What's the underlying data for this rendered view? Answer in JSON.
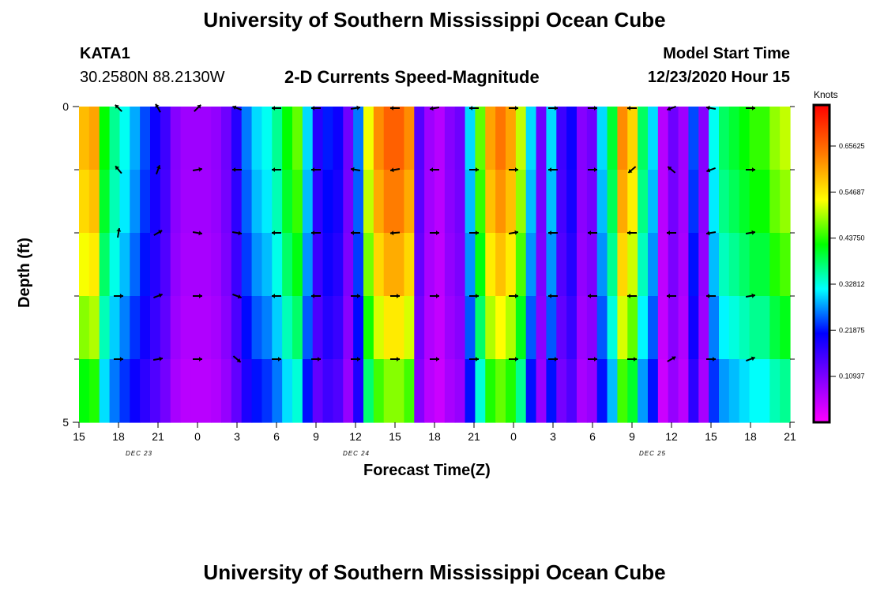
{
  "header": {
    "title": "University of Southern Mississippi Ocean Cube",
    "station": "KATA1",
    "coords": "30.2580N 88.2130W",
    "plot_title": "2-D Currents Speed-Magnitude",
    "model_start_label": "Model Start Time",
    "model_start_value": "12/23/2020 Hour 15"
  },
  "footer": {
    "title": "University of Southern Mississippi Ocean Cube"
  },
  "chart_data": {
    "type": "heatmap",
    "title": "2-D Currents Speed-Magnitude",
    "xlabel": "Forecast Time(Z)",
    "ylabel": "Depth (ft)",
    "yticks": [
      "0",
      "5"
    ],
    "xtick_labels": [
      "15",
      "18",
      "21",
      "0",
      "3",
      "6",
      "9",
      "12",
      "15",
      "18",
      "21",
      "0",
      "3",
      "6",
      "9",
      "12",
      "15",
      "18",
      "21"
    ],
    "day_labels": [
      "DEC 23",
      "DEC 24",
      "DEC 25"
    ],
    "colorbar": {
      "label": "Knots",
      "min": 0.0,
      "max": 0.75,
      "ticks": [
        "0.10937",
        "0.21875",
        "0.32812",
        "0.43750",
        "0.54687",
        "0.65625"
      ]
    },
    "hours": 54,
    "speed_profile": [
      0.58,
      0.6,
      0.42,
      0.36,
      0.32,
      0.28,
      0.24,
      0.2,
      0.16,
      0.1,
      0.08,
      0.08,
      0.08,
      0.09,
      0.12,
      0.18,
      0.26,
      0.3,
      0.32,
      0.36,
      0.42,
      0.46,
      0.3,
      0.18,
      0.22,
      0.2,
      0.12,
      0.26,
      0.52,
      0.62,
      0.66,
      0.66,
      0.62,
      0.14,
      0.08,
      0.06,
      0.1,
      0.12,
      0.3,
      0.46,
      0.6,
      0.64,
      0.6,
      0.5,
      0.3,
      0.12,
      0.3,
      0.16,
      0.2,
      0.1,
      0.12,
      0.3,
      0.4,
      0.62,
      0.56,
      0.38,
      0.3,
      0.06,
      0.12,
      0.08,
      0.24,
      0.1,
      0.32,
      0.38,
      0.4,
      0.42,
      0.44,
      0.44,
      0.48,
      0.5
    ],
    "layer_factors": [
      1.0,
      0.96,
      0.9,
      0.82,
      0.72
    ],
    "vectors": {
      "hours": [
        3,
        6,
        9,
        12,
        15,
        18,
        21,
        24,
        27,
        30,
        33,
        36,
        39,
        42,
        45,
        48,
        51
      ],
      "directions_deg": [
        [
          135,
          120,
          45,
          160,
          180,
          180,
          10,
          180,
          190,
          180,
          0,
          0,
          0,
          180,
          200,
          170,
          0
        ],
        [
          130,
          70,
          10,
          180,
          180,
          180,
          170,
          190,
          180,
          0,
          0,
          180,
          0,
          220,
          140,
          200,
          0
        ],
        [
          80,
          30,
          350,
          350,
          180,
          180,
          180,
          185,
          0,
          0,
          10,
          180,
          180,
          180,
          180,
          190,
          10
        ],
        [
          0,
          20,
          0,
          340,
          180,
          180,
          0,
          0,
          0,
          0,
          0,
          180,
          180,
          180,
          180,
          180,
          10
        ],
        [
          0,
          10,
          0,
          320,
          0,
          0,
          0,
          0,
          0,
          0,
          0,
          0,
          0,
          0,
          30,
          0,
          20
        ]
      ]
    }
  }
}
